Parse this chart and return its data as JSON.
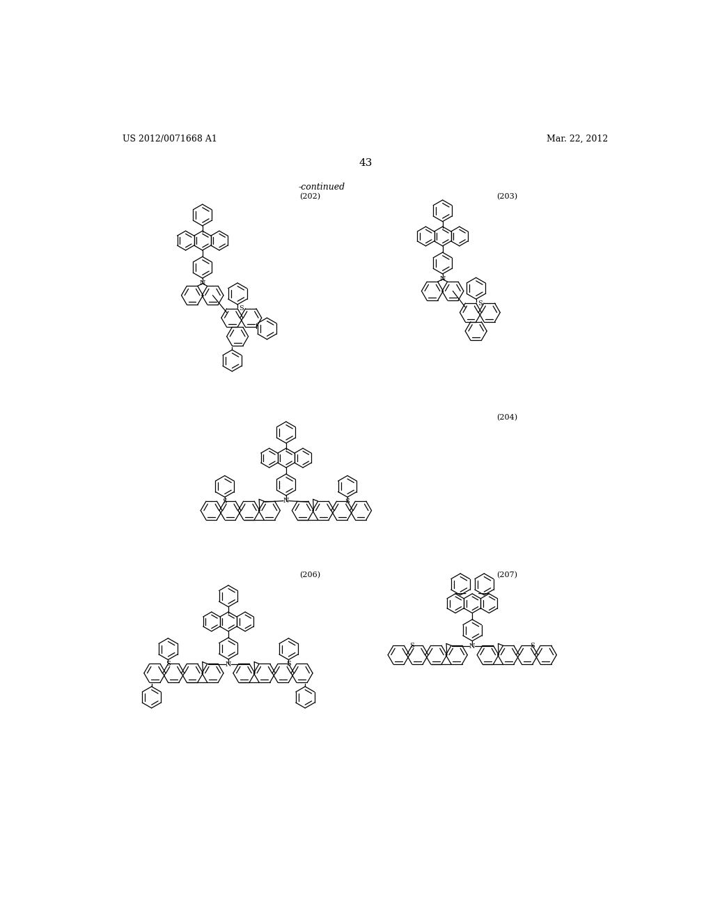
{
  "background_color": "#ffffff",
  "page_width": 10.24,
  "page_height": 13.2,
  "header_left": "US 2012/0071668 A1",
  "header_right": "Mar. 22, 2012",
  "page_number": "43",
  "continued_label": "-continued",
  "label_202": "(202)",
  "label_203": "(203)",
  "label_204": "(204)",
  "label_206": "(206)",
  "label_207": "(207)",
  "text_color": "#000000",
  "line_color": "#000000"
}
